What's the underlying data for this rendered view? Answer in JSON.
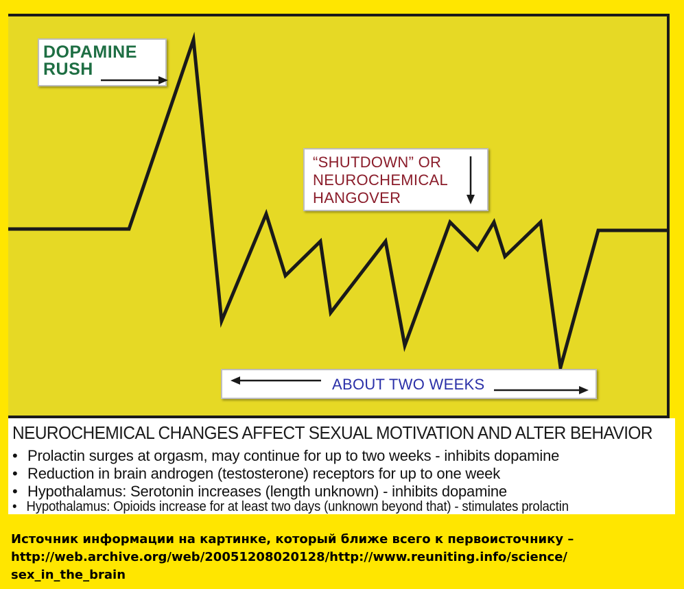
{
  "diagram": {
    "labels": {
      "dopamine_rush": [
        "DOPAMINE",
        "RUSH"
      ],
      "shutdown": [
        "“SHUTDOWN” OR",
        "NEUROCHEMICAL",
        "HANGOVER"
      ],
      "duration": "ABOUT TWO WEEKS"
    },
    "colors": {
      "panel": "#e6d925",
      "line": "#1a1a1a",
      "dopamine_text": "#1e6e43",
      "shutdown_text": "#8a1c2a",
      "duration_text": "#2a2fa8",
      "page": "#ffe600"
    }
  },
  "caption": {
    "title": "NEUROCHEMICAL CHANGES AFFECT SEXUAL MOTIVATION AND ALTER BEHAVIOR",
    "bullets": [
      "Prolactin surges at orgasm, may continue for up to two weeks - inhibits dopamine",
      "Reduction in brain androgen (testosterone) receptors for up to one week",
      "Hypothalamus: Serotonin increases (length unknown) - inhibits dopamine",
      "Hypothalamus: Opioids increase for at least two days (unknown beyond that) - stimulates prolactin"
    ]
  },
  "footer": {
    "lines": [
      "Источник информации на картинке, который ближе всего к первоисточнику –",
      "http://web.archive.org/web/20051208020128/http://www.reuniting.info/science/",
      "sex_in_the_brain"
    ]
  }
}
